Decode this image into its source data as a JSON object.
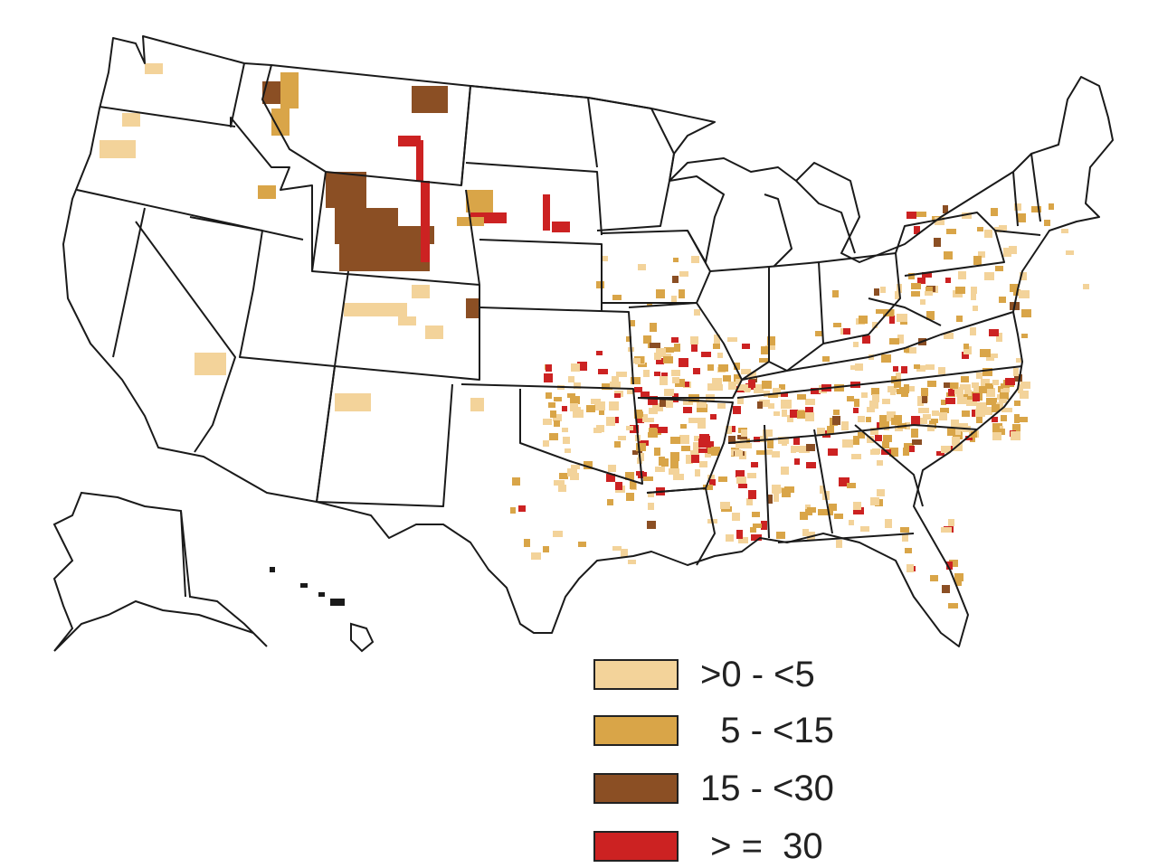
{
  "map": {
    "region": "United States counties",
    "boundary_color": "#1a1a1a",
    "background_color": "#ffffff"
  },
  "legend": {
    "items": [
      {
        "label": ">0 - <5",
        "color": "#f3d39a"
      },
      {
        "label": "  5 - <15",
        "color": "#d9a548"
      },
      {
        "label": "15 - <30",
        "color": "#8b4f24"
      },
      {
        "label": " > =  30",
        "color": "#cc2222"
      }
    ]
  }
}
